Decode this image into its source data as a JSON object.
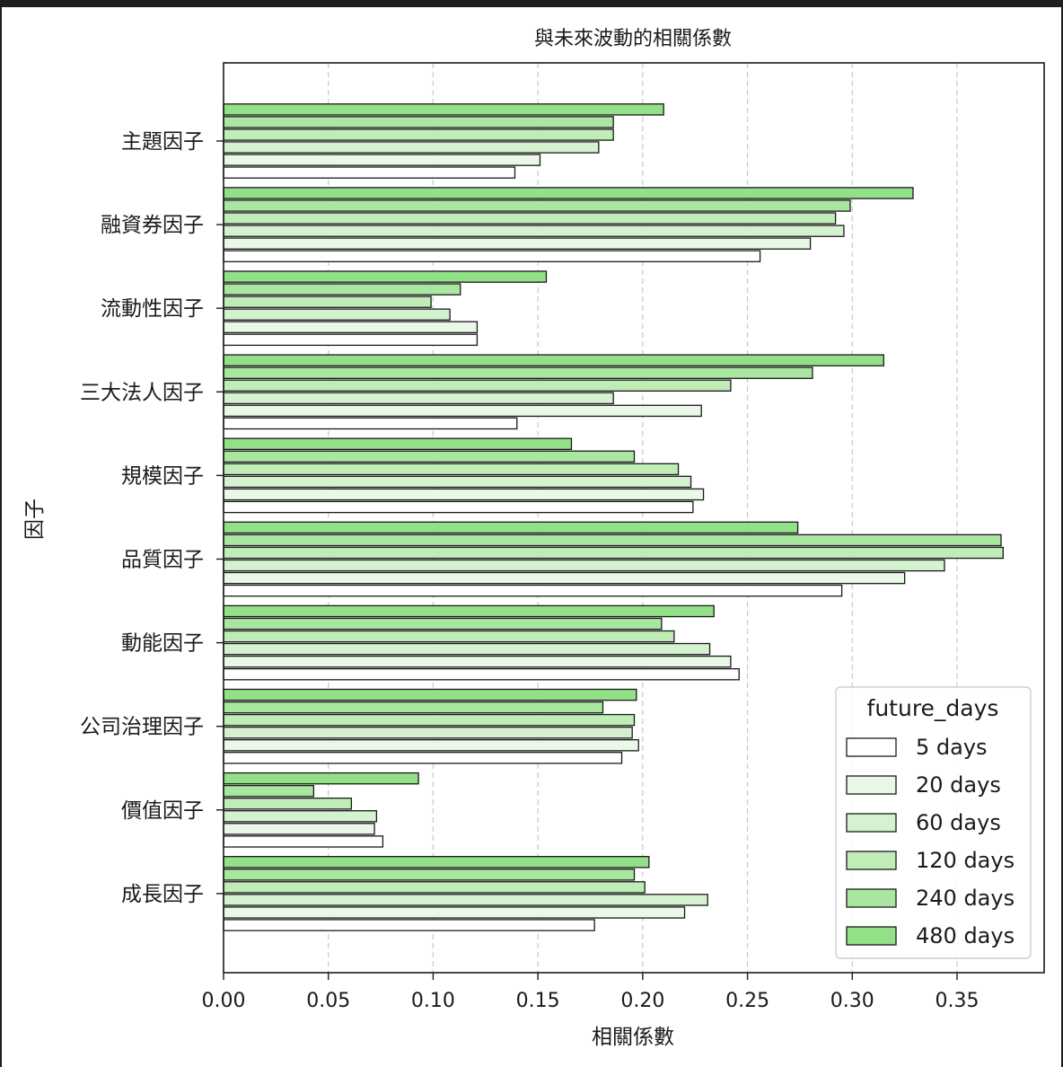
{
  "chart_data": {
    "type": "bar",
    "orientation": "horizontal",
    "title": "與未來波動的相關係數",
    "xlabel": "相關係數",
    "ylabel": "因子",
    "xlim": [
      0,
      0.39
    ],
    "xticks": [
      "0.00",
      "0.05",
      "0.10",
      "0.15",
      "0.20",
      "0.25",
      "0.30",
      "0.35"
    ],
    "grid": "x, dashed",
    "legend": {
      "title": "future_days",
      "position": "bottom-right"
    },
    "categories": [
      "主題因子",
      "融資券因子",
      "流動性因子",
      "三大法人因子",
      "規模因子",
      "品質因子",
      "動能因子",
      "公司治理因子",
      "價值因子",
      "成長因子"
    ],
    "series": [
      {
        "name": "5 days",
        "color": "#ffffff",
        "values": [
          0.139,
          0.256,
          0.121,
          0.14,
          0.224,
          0.295,
          0.246,
          0.19,
          0.076,
          0.177
        ]
      },
      {
        "name": "20 days",
        "color": "#e9f8e7",
        "values": [
          0.151,
          0.28,
          0.121,
          0.228,
          0.229,
          0.325,
          0.242,
          0.198,
          0.072,
          0.22
        ]
      },
      {
        "name": "60 days",
        "color": "#d4f2cf",
        "values": [
          0.179,
          0.296,
          0.108,
          0.186,
          0.223,
          0.344,
          0.232,
          0.195,
          0.073,
          0.231
        ]
      },
      {
        "name": "120 days",
        "color": "#bfecb7",
        "values": [
          0.186,
          0.292,
          0.099,
          0.242,
          0.217,
          0.372,
          0.215,
          0.196,
          0.061,
          0.201
        ]
      },
      {
        "name": "240 days",
        "color": "#a9e69f",
        "values": [
          0.186,
          0.299,
          0.113,
          0.281,
          0.196,
          0.371,
          0.209,
          0.181,
          0.043,
          0.196
        ]
      },
      {
        "name": "480 days",
        "color": "#92e087",
        "values": [
          0.21,
          0.329,
          0.154,
          0.315,
          0.166,
          0.274,
          0.234,
          0.197,
          0.093,
          0.203
        ]
      }
    ]
  }
}
